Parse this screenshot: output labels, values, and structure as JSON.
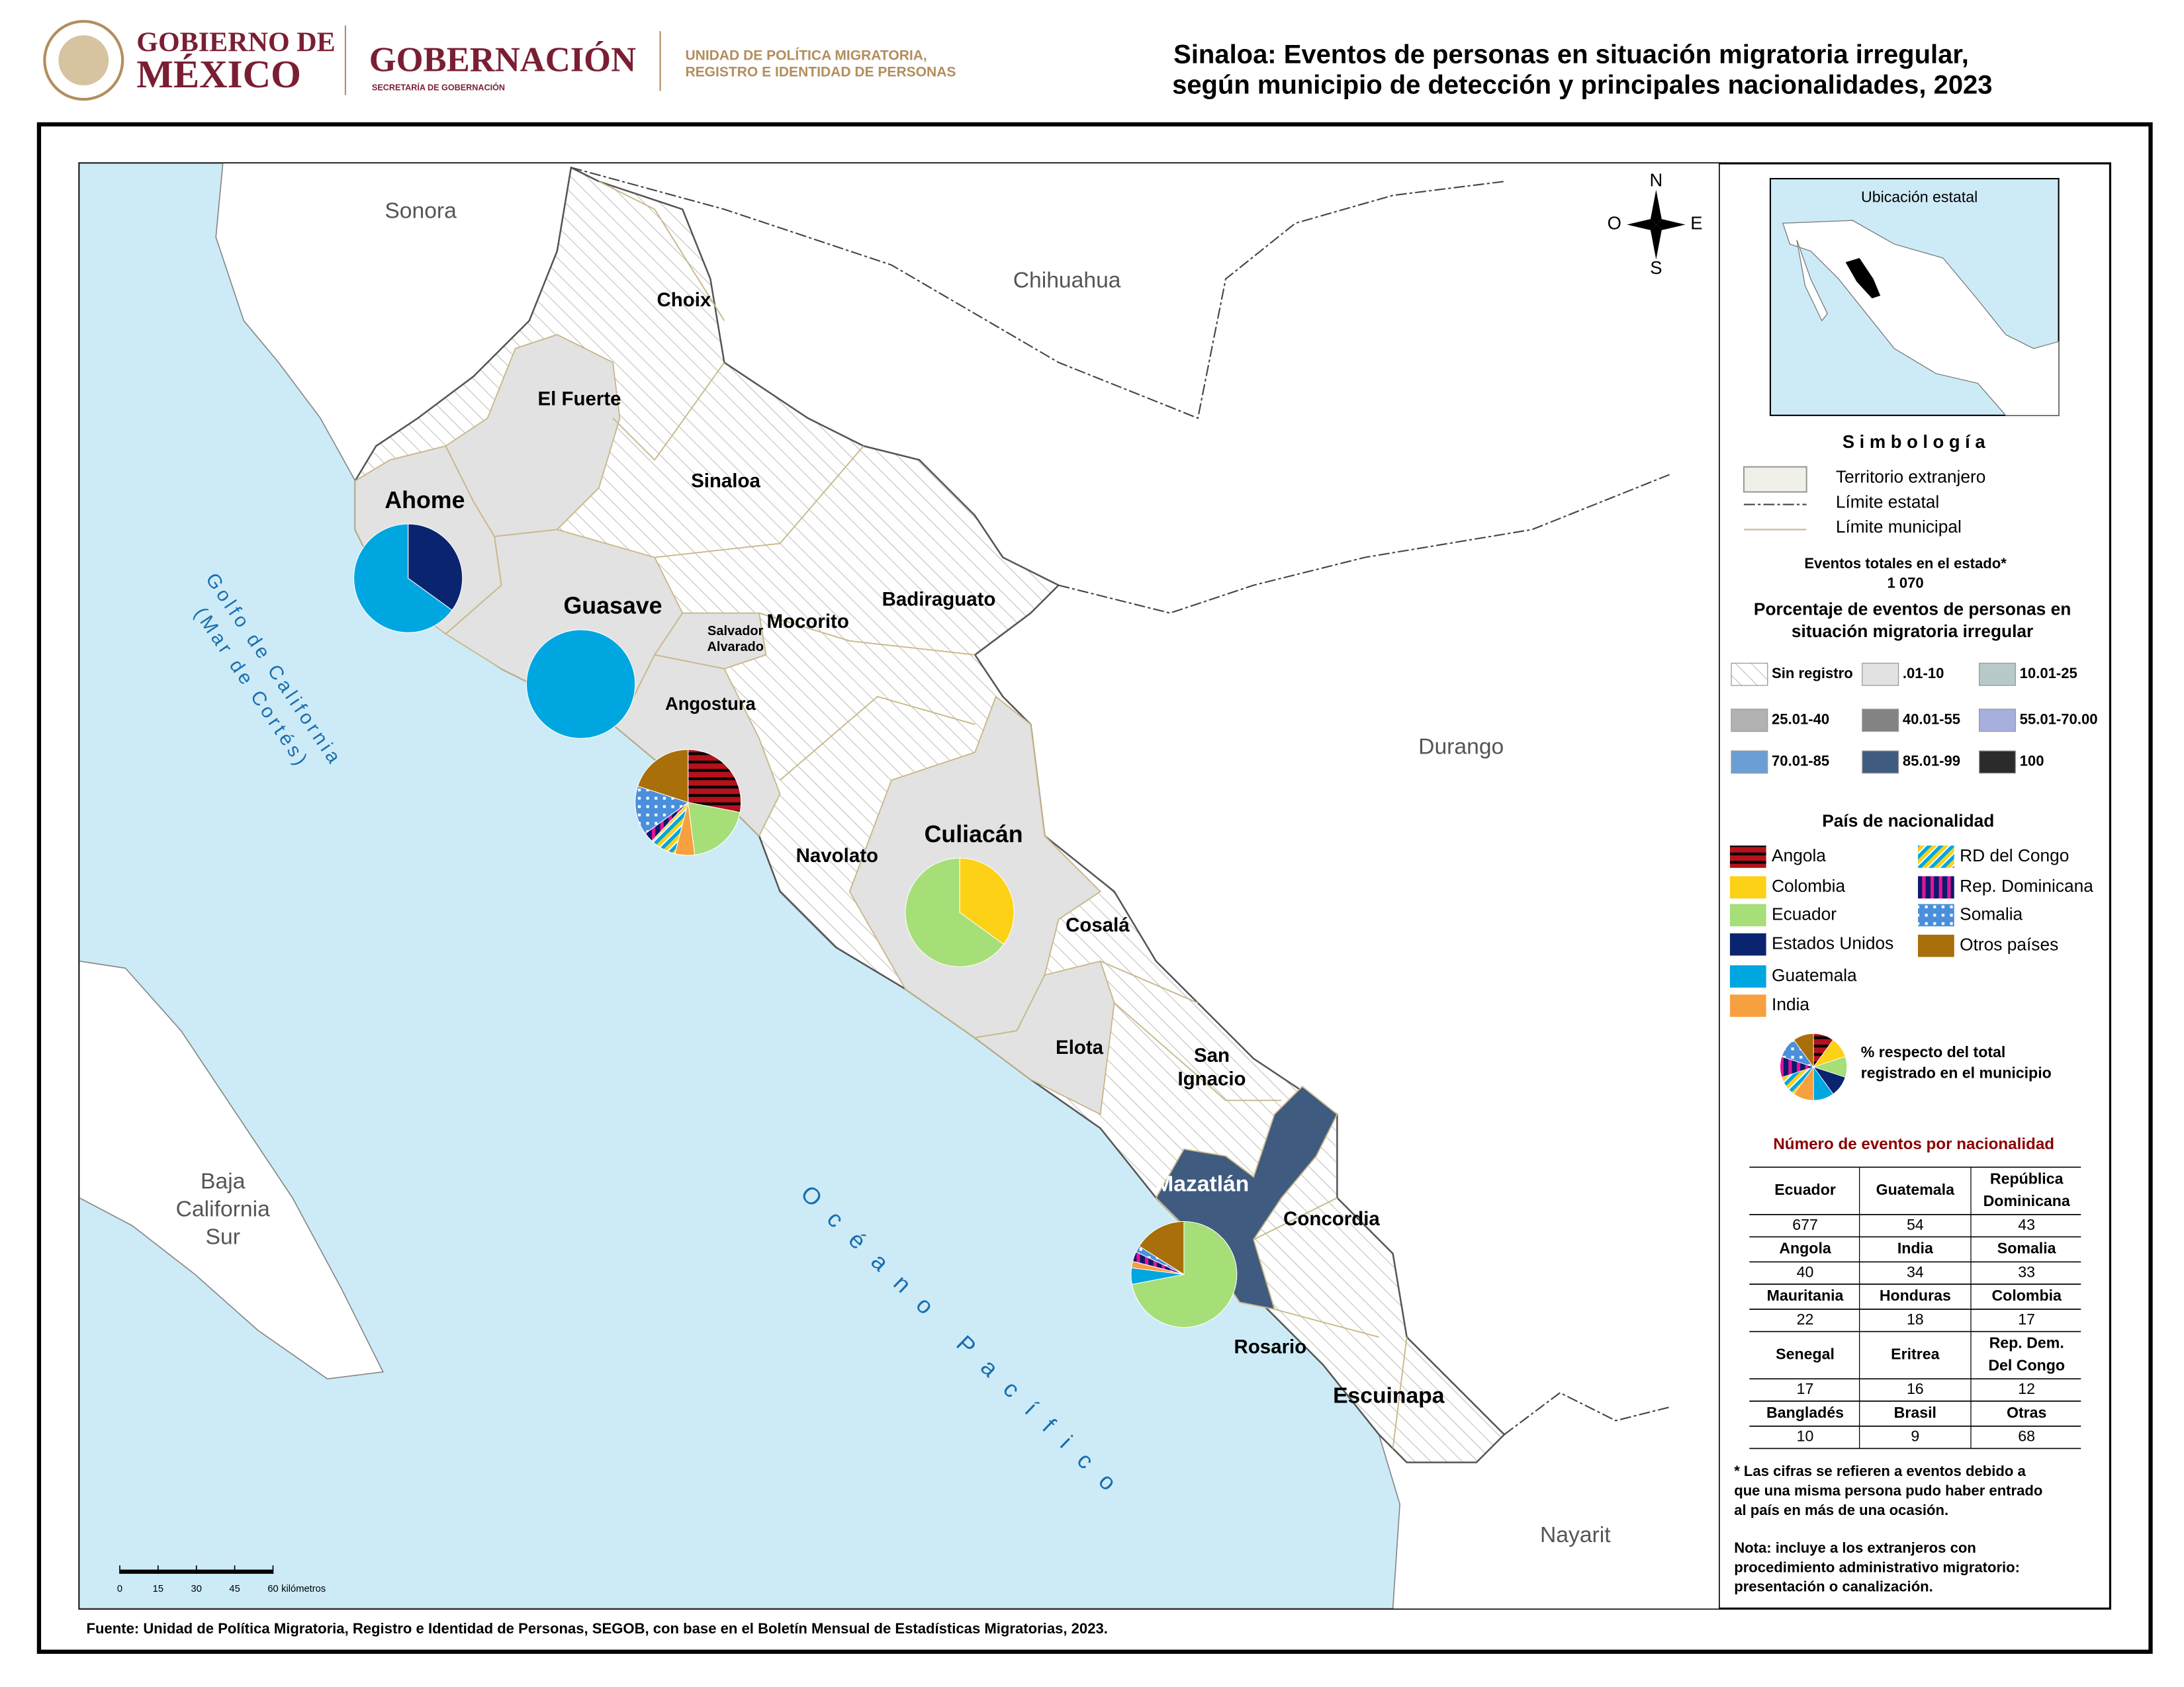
{
  "header": {
    "gov_line1": "GOBIERNO DE",
    "gov_line2": "MÉXICO",
    "secretaria": "GOBERNACIÓN",
    "secretaria_sub": "SECRETARÍA DE GOBERNACIÓN",
    "unit_line1": "UNIDAD DE POLÍTICA MIGRATORIA,",
    "unit_line2": "REGISTRO E IDENTIDAD DE PERSONAS",
    "title_line1": "Sinaloa: Eventos de personas en situación migratoria irregular,",
    "title_line2": "según municipio de detección y principales nacionalidades, 2023"
  },
  "map": {
    "regions": [
      "Sonora",
      "Chihuahua",
      "Durango",
      "Nayarit",
      [
        "Baja",
        "California",
        "Sur"
      ]
    ],
    "gulf": [
      "Golfo de California",
      "(Mar de Cortés)"
    ],
    "ocean": "Océano Pacífico",
    "compass": {
      "n": "N",
      "s": "S",
      "e": "E",
      "w": "O"
    },
    "scale": {
      "ticks": [
        "0",
        "15",
        "30",
        "45",
        "60"
      ],
      "unit": "kilómetros"
    },
    "municipalities": [
      {
        "name": [
          "Ahome"
        ],
        "class": ".01-10"
      },
      {
        "name": [
          "El Fuerte"
        ],
        "class": ".01-10"
      },
      {
        "name": [
          "Choix"
        ],
        "class": "Sin registro"
      },
      {
        "name": [
          "Sinaloa"
        ],
        "class": "Sin registro"
      },
      {
        "name": [
          "Guasave"
        ],
        "class": ".01-10"
      },
      {
        "name": [
          "Salvador",
          "Alvarado"
        ],
        "class": ".01-10"
      },
      {
        "name": [
          "Mocorito"
        ],
        "class": "Sin registro"
      },
      {
        "name": [
          "Badiraguato"
        ],
        "class": "Sin registro"
      },
      {
        "name": [
          "Angostura"
        ],
        "class": ".01-10"
      },
      {
        "name": [
          "Navolato"
        ],
        "class": "Sin registro"
      },
      {
        "name": [
          "Culiacán"
        ],
        "class": ".01-10"
      },
      {
        "name": [
          "Cosalá"
        ],
        "class": "Sin registro"
      },
      {
        "name": [
          "Elota"
        ],
        "class": ".01-10"
      },
      {
        "name": [
          "San",
          "Ignacio"
        ],
        "class": "Sin registro"
      },
      {
        "name": [
          "Mazatlán"
        ],
        "class": "85.01-99"
      },
      {
        "name": [
          "Concordia"
        ],
        "class": "Sin registro"
      },
      {
        "name": [
          "Rosario"
        ],
        "class": "Sin registro"
      },
      {
        "name": [
          "Escuinapa"
        ],
        "class": "Sin registro"
      }
    ],
    "pies": [
      {
        "slices": [
          {
            "nationality": "Estados Unidos",
            "value": 35
          },
          {
            "nationality": "Guatemala",
            "value": 65
          }
        ]
      },
      {
        "slices": [
          {
            "nationality": "Guatemala",
            "value": 100
          }
        ]
      },
      {
        "slices": [
          {
            "nationality": "Angola",
            "value": 28
          },
          {
            "nationality": "Ecuador",
            "value": 20
          },
          {
            "nationality": "India",
            "value": 6
          },
          {
            "nationality": "RD del Congo",
            "value": 8
          },
          {
            "nationality": "Rep. Dominicana",
            "value": 3
          },
          {
            "nationality": "Somalia",
            "value": 15
          },
          {
            "nationality": "Otros países",
            "value": 20
          }
        ]
      },
      {
        "slices": [
          {
            "nationality": "Colombia",
            "value": 35
          },
          {
            "nationality": "Ecuador",
            "value": 65
          }
        ]
      },
      {
        "slices": [
          {
            "nationality": "Ecuador",
            "value": 72
          },
          {
            "nationality": "Guatemala",
            "value": 5
          },
          {
            "nationality": "India",
            "value": 2
          },
          {
            "nationality": "Rep. Dominicana",
            "value": 3
          },
          {
            "nationality": "Somalia",
            "value": 2
          },
          {
            "nationality": "Otros países",
            "value": 16
          }
        ]
      }
    ]
  },
  "inset": {
    "title": "Ubicación estatal"
  },
  "legend": {
    "title": "S i m b o l o g í a",
    "symbols": [
      "Territorio extranjero",
      "Límite estatal",
      "Límite municipal"
    ],
    "total_label": "Eventos totales en el estado*",
    "total": "1 070",
    "classes_title": [
      "Porcentaje de eventos de personas en",
      "situación migratoria irregular"
    ],
    "classes": [
      {
        "label": "Sin registro",
        "color": "hatch"
      },
      {
        "label": ".01-10",
        "color": "#e2e2e2"
      },
      {
        "label": "10.01-25",
        "color": "#b7c9c9"
      },
      {
        "label": "25.01-40",
        "color": "#b2b2b2"
      },
      {
        "label": "40.01-55",
        "color": "#838383"
      },
      {
        "label": "55.01-70.00",
        "color": "#a7afdf"
      },
      {
        "label": "70.01-85",
        "color": "#6b9fd3"
      },
      {
        "label": "85.01-99",
        "color": "#3f5b80"
      },
      {
        "label": "100",
        "color": "#2b2b2b"
      }
    ],
    "nationality_title": "País de nacionalidad",
    "nationalities": [
      {
        "name": "Angola",
        "color": "#b5121b",
        "color2": "#000000",
        "pattern": "horizontal-stripes"
      },
      {
        "name": "Colombia",
        "color": "#fcd116"
      },
      {
        "name": "Ecuador",
        "color": "#a6de78"
      },
      {
        "name": "Estados Unidos",
        "color": "#0b2470"
      },
      {
        "name": "Guatemala",
        "color": "#00a6e0"
      },
      {
        "name": "India",
        "color": "#f7a040"
      },
      {
        "name": "RD del Congo",
        "color": "#00a6e0",
        "color2": "#fcd116",
        "pattern": "diagonal-stripes"
      },
      {
        "name": "Rep. Dominicana",
        "color": "#0b1a6b",
        "color2": "#e0139a",
        "pattern": "vertical-stripes"
      },
      {
        "name": "Somalia",
        "color": "#4a8fdc",
        "color2": "#ffffff",
        "pattern": "dots"
      },
      {
        "name": "Otros países",
        "color": "#a86f0a"
      }
    ],
    "pie_note": [
      "% respecto del total",
      "registrado en el municipio"
    ]
  },
  "table": {
    "title": "Número de eventos por nacionalidad",
    "rows": [
      {
        "names": [
          [
            "Ecuador"
          ],
          [
            "Guatemala"
          ],
          [
            "República",
            "Dominicana"
          ]
        ],
        "values": [
          677,
          54,
          43
        ]
      },
      {
        "names": [
          [
            "Angola"
          ],
          [
            "India"
          ],
          [
            "Somalia"
          ]
        ],
        "values": [
          40,
          34,
          33
        ]
      },
      {
        "names": [
          [
            "Mauritania"
          ],
          [
            "Honduras"
          ],
          [
            "Colombia"
          ]
        ],
        "values": [
          22,
          18,
          17
        ]
      },
      {
        "names": [
          [
            "Senegal"
          ],
          [
            "Eritrea"
          ],
          [
            "Rep. Dem.",
            "Del Congo"
          ]
        ],
        "values": [
          17,
          16,
          12
        ]
      },
      {
        "names": [
          [
            "Bangladés"
          ],
          [
            "Brasil"
          ],
          [
            "Otras"
          ]
        ],
        "values": [
          10,
          9,
          68
        ]
      }
    ]
  },
  "notes": {
    "footnote": [
      "* Las cifras se refieren a eventos debido a",
      "que una misma persona pudo haber entrado",
      "al país en más de una ocasión."
    ],
    "nota": [
      "Nota: incluye a los extranjeros con",
      "procedimiento administrativo migratorio:",
      "presentación o canalización."
    ]
  },
  "source": "Fuente: Unidad de Política Migratoria, Registro e Identidad de Personas, SEGOB, con base en el Boletín Mensual de Estadísticas Migratorias, 2023."
}
